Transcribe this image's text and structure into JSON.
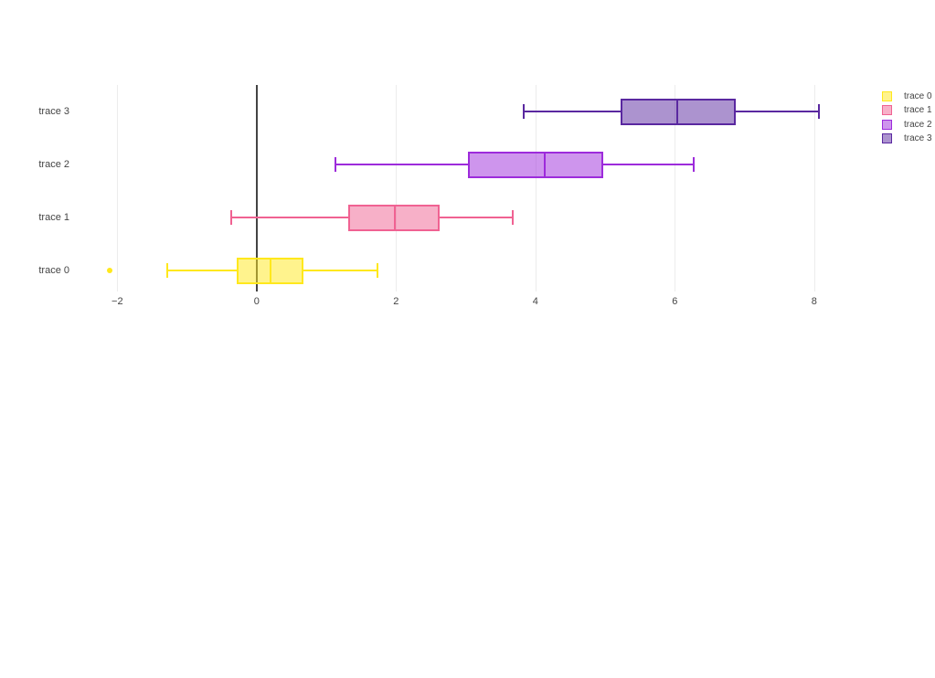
{
  "figure": {
    "background_color": "#ffffff",
    "text_color": "#444444",
    "grid_color": "#ececec",
    "zeroline_color": "#444444"
  },
  "y_axis": {
    "labels": [
      "trace 0",
      "trace 1",
      "trace 2",
      "trace 3"
    ]
  },
  "x_axis": {
    "tick_values": [
      -2,
      0,
      2,
      4,
      6,
      8
    ],
    "tick_labels": [
      "−2",
      "0",
      "2",
      "4",
      "6",
      "8"
    ]
  },
  "chart_data": {
    "type": "box",
    "orientation": "horizontal",
    "title": "",
    "xlabel": "",
    "ylabel": "",
    "grid": true,
    "legend_position": "top-right",
    "xrange": [
      -2.4,
      8.7
    ],
    "xticks": [
      -2,
      0,
      2,
      4,
      6,
      8
    ],
    "categories": [
      "trace 0",
      "trace 1",
      "trace 2",
      "trace 3"
    ],
    "series": [
      {
        "name": "trace 0",
        "line_color": "#ffe81c",
        "fill_color": "rgba(255,232,28,0.5)",
        "whisker_low": -1.28,
        "q1": -0.28,
        "median": 0.2,
        "q3": 0.67,
        "whisker_high": 1.73,
        "outliers": [
          -2.11
        ]
      },
      {
        "name": "trace 1",
        "line_color": "#f06292",
        "fill_color": "rgba(240,98,146,0.5)",
        "whisker_low": -0.37,
        "q1": 1.32,
        "median": 1.98,
        "q3": 2.62,
        "whisker_high": 3.68,
        "outliers": []
      },
      {
        "name": "trace 2",
        "line_color": "#9d2bdb",
        "fill_color": "rgba(157,43,219,0.5)",
        "whisker_low": 1.13,
        "q1": 3.03,
        "median": 4.14,
        "q3": 4.97,
        "whisker_high": 6.27,
        "outliers": []
      },
      {
        "name": "trace 3",
        "line_color": "#5a28a0",
        "fill_color": "rgba(90,40,160,0.5)",
        "whisker_low": 3.83,
        "q1": 5.22,
        "median": 6.04,
        "q3": 6.88,
        "whisker_high": 8.07,
        "outliers": []
      }
    ]
  }
}
